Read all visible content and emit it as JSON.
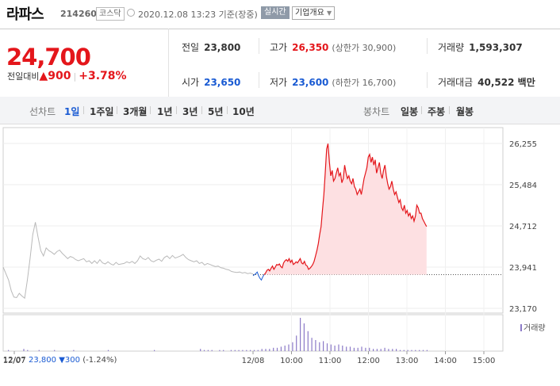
{
  "header": {
    "stock_name": "라파스",
    "stock_code": "214260",
    "market": "코스닥",
    "timestamp": "2020.12.08 13:23 기준(장중)",
    "realtime_button": "실시간",
    "company_overview_button": "기업개요"
  },
  "quote": {
    "current_price": "24,700",
    "change_label": "전일대비",
    "change_arrow": "▲",
    "change_value": "900",
    "change_percent": "+3.78%"
  },
  "stats": {
    "prev_close": {
      "label": "전일",
      "value": "23,800"
    },
    "high": {
      "label": "고가",
      "value": "26,350",
      "limit_label": "(상한가",
      "limit_value": "30,900)"
    },
    "volume": {
      "label": "거래량",
      "value": "1,593,307"
    },
    "open": {
      "label": "시가",
      "value": "23,650"
    },
    "low": {
      "label": "저가",
      "value": "23,600",
      "limit_label": "(하한가",
      "limit_value": "16,700)"
    },
    "trade_amount": {
      "label": "거래대금",
      "value": "40,522 백만"
    }
  },
  "tabs": {
    "line_chart_label": "선차트",
    "line_periods": [
      "1일",
      "1주일",
      "3개월",
      "1년",
      "3년",
      "5년",
      "10년"
    ],
    "active_period": "1일",
    "candle_chart_label": "봉차트",
    "candle_periods": [
      "일봉",
      "주봉",
      "월봉"
    ]
  },
  "colors": {
    "up": "#e4161b",
    "down": "#1a5bd3",
    "fill": "#fde0e2",
    "grey_line": "#b9b9b9",
    "volume": "#8b7ac7"
  },
  "chart_data": {
    "type": "line",
    "y_ticks": [
      "26,255",
      "25,484",
      "24,712",
      "23,941",
      "23,170"
    ],
    "y_tick_values": [
      26255,
      25484,
      24712,
      23941,
      23170
    ],
    "x_ticks": [
      "12/07",
      "12/08",
      "10:00",
      "11:00",
      "12:00",
      "13:00",
      "14:00",
      "15:00"
    ],
    "reference_price": 23800,
    "ylim": [
      23170,
      26255
    ],
    "previous_day": {
      "label": "12/07",
      "values": [
        23941,
        23820,
        23700,
        23500,
        23380,
        23370,
        23450,
        23400,
        23360,
        23700,
        24100,
        24550,
        24780,
        24500,
        24250,
        24150,
        24300,
        24250,
        24220,
        24180,
        24230,
        24260,
        24200,
        24150,
        24100,
        24140,
        24120,
        24080,
        24060,
        24080,
        24100,
        24040,
        24060,
        24010,
        24060,
        24010,
        24080,
        24020,
        24000,
        24040,
        24000,
        23980,
        24030,
        23990,
        24000,
        24010,
        24040,
        24020,
        24050,
        24010,
        24060,
        24150,
        24100,
        24080,
        24120,
        24060,
        24040,
        24070,
        24090,
        24050,
        24120,
        24150,
        24100,
        24160,
        24110,
        24130,
        24150,
        24180,
        24120,
        24080,
        24060,
        24040,
        24060,
        24010,
        24030,
        23980,
        24010,
        23990,
        23970,
        23950,
        23960,
        23930,
        23920,
        23900,
        23890,
        23860,
        23850,
        23840,
        23850,
        23830,
        23840,
        23820,
        23830,
        23810
      ]
    },
    "current_day_down": [
      23780,
      23800,
      23820,
      23850,
      23780,
      23730,
      23700,
      23760,
      23800
    ],
    "current_day_up": [
      23800,
      23830,
      23880,
      23900,
      23870,
      23920,
      23960,
      23900,
      23940,
      23990,
      23980,
      24000,
      23950,
      23930,
      24020,
      24060,
      24080,
      24050,
      24100,
      24030,
      24070,
      23990,
      24010,
      24040,
      24020,
      24060,
      24100,
      24020,
      24000,
      24050,
      23980,
      23960,
      23900,
      23920,
      23950,
      23990,
      24050,
      24150,
      24250,
      24380,
      24550,
      24700,
      25000,
      25300,
      25700,
      26150,
      26250,
      25900,
      25650,
      25750,
      25550,
      25600,
      25700,
      25800,
      25650,
      25700,
      25520,
      25600,
      25850,
      25700,
      25600,
      25650,
      25550,
      25500,
      25600,
      25450,
      25400,
      25300,
      25350,
      25400,
      25300,
      25450,
      25600,
      25700,
      25800,
      26000,
      26050,
      25900,
      26000,
      25850,
      25950,
      25700,
      25800,
      25900,
      25700,
      25600,
      25750,
      25850,
      25650,
      25500,
      25400,
      25450,
      25550,
      25400,
      25300,
      25350,
      25250,
      25150,
      25200,
      25050,
      25000,
      25100,
      24950,
      25000,
      24900,
      24950,
      24850,
      24900,
      24800,
      24900,
      25100,
      25050,
      24950,
      24950,
      24850,
      24800,
      24750,
      24700
    ]
  },
  "volume": {
    "label": "거래량",
    "bars": [
      1,
      0,
      0,
      0,
      2,
      1,
      0,
      0,
      1,
      0,
      0,
      0,
      1,
      0,
      0,
      0,
      0,
      1,
      0,
      0,
      0,
      0,
      0,
      0,
      0,
      0,
      1,
      0,
      0,
      0,
      0,
      0,
      0,
      0,
      0,
      0,
      0,
      0,
      1,
      0,
      0,
      0,
      0,
      0,
      0,
      0,
      0,
      0,
      0,
      0,
      2,
      1,
      1,
      1,
      0,
      1,
      1,
      0,
      1,
      1,
      1,
      1,
      1,
      1,
      1,
      1,
      2,
      2,
      2,
      3,
      3,
      4,
      5,
      6,
      8,
      14,
      30,
      25,
      18,
      12,
      10,
      8,
      9,
      7,
      6,
      5,
      6,
      5,
      4,
      4,
      3,
      3,
      4,
      3,
      3,
      2,
      2,
      2,
      3,
      2,
      2,
      2,
      1,
      1,
      1,
      1,
      1,
      1,
      1,
      1
    ]
  },
  "footer": {
    "date": "12/07",
    "close": "23,800",
    "arrow": "▼",
    "change": "300",
    "percent": "(-1.24%)"
  }
}
